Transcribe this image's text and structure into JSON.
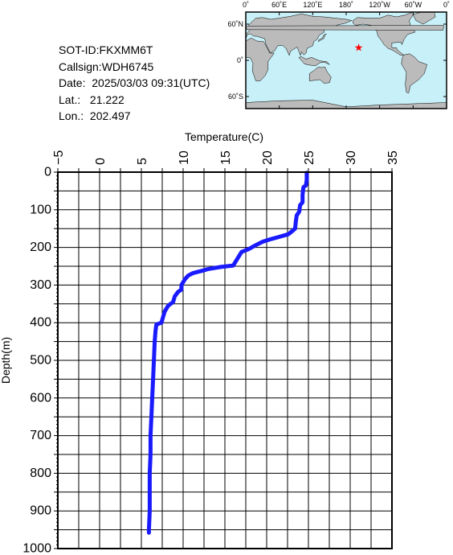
{
  "info": {
    "sot_id": "SOT-ID:FKXMM6T",
    "callsign": "Callsign:WDH6745",
    "date": "Date:  2025/03/03 09:31(UTC)",
    "lat": "Lat.:   21.222",
    "lon": "Lon.:  202.497"
  },
  "map": {
    "top_labels": [
      "0˚",
      "60˚E",
      "120˚E",
      "180˚",
      "120˚W",
      "60˚W",
      "0˚"
    ],
    "left_labels": [
      "60˚N",
      "0˚",
      "60˚S"
    ],
    "marker": {
      "lon_east": 202.497,
      "lat": 21.222
    },
    "colors": {
      "ocean": "#c8f0f8",
      "land": "#bbbbbb",
      "marker": "#ff0000"
    }
  },
  "chart_data": {
    "type": "line",
    "xlabel": "Temperature(C)",
    "ylabel": "Depth(m)",
    "xlim": [
      -5,
      35
    ],
    "ylim": [
      1000,
      0
    ],
    "x_ticks": [
      "-5",
      "0",
      "5",
      "10",
      "15",
      "20",
      "25",
      "30",
      "35"
    ],
    "y_ticks": [
      "0",
      "100",
      "200",
      "300",
      "400",
      "500",
      "600",
      "700",
      "800",
      "900",
      "1000"
    ],
    "grid": true,
    "line_color": "#1a1aff",
    "series": [
      {
        "points": [
          [
            24.8,
            2
          ],
          [
            24.8,
            20
          ],
          [
            24.7,
            35
          ],
          [
            24.4,
            40
          ],
          [
            24.3,
            60
          ],
          [
            24.3,
            80
          ],
          [
            24.0,
            88
          ],
          [
            23.9,
            105
          ],
          [
            23.6,
            115
          ],
          [
            23.5,
            130
          ],
          [
            23.4,
            150
          ],
          [
            23.0,
            158
          ],
          [
            22.6,
            165
          ],
          [
            21.5,
            172
          ],
          [
            20.5,
            178
          ],
          [
            19.5,
            185
          ],
          [
            18.6,
            195
          ],
          [
            17.8,
            205
          ],
          [
            17.0,
            212
          ],
          [
            16.5,
            230
          ],
          [
            16.0,
            248
          ],
          [
            14.5,
            252
          ],
          [
            12.9,
            258
          ],
          [
            12.3,
            262
          ],
          [
            11.2,
            268
          ],
          [
            10.6,
            275
          ],
          [
            10.2,
            285
          ],
          [
            9.8,
            300
          ],
          [
            9.8,
            312
          ],
          [
            9.4,
            318
          ],
          [
            9.0,
            330
          ],
          [
            8.8,
            345
          ],
          [
            8.2,
            355
          ],
          [
            7.8,
            370
          ],
          [
            7.6,
            385
          ],
          [
            7.4,
            400
          ],
          [
            6.8,
            405
          ],
          [
            6.7,
            420
          ],
          [
            6.6,
            450
          ],
          [
            6.5,
            500
          ],
          [
            6.4,
            550
          ],
          [
            6.3,
            600
          ],
          [
            6.2,
            650
          ],
          [
            6.1,
            700
          ],
          [
            6.1,
            750
          ],
          [
            6.0,
            800
          ],
          [
            6.0,
            850
          ],
          [
            6.0,
            900
          ],
          [
            5.9,
            950
          ],
          [
            5.9,
            958
          ]
        ]
      }
    ]
  }
}
